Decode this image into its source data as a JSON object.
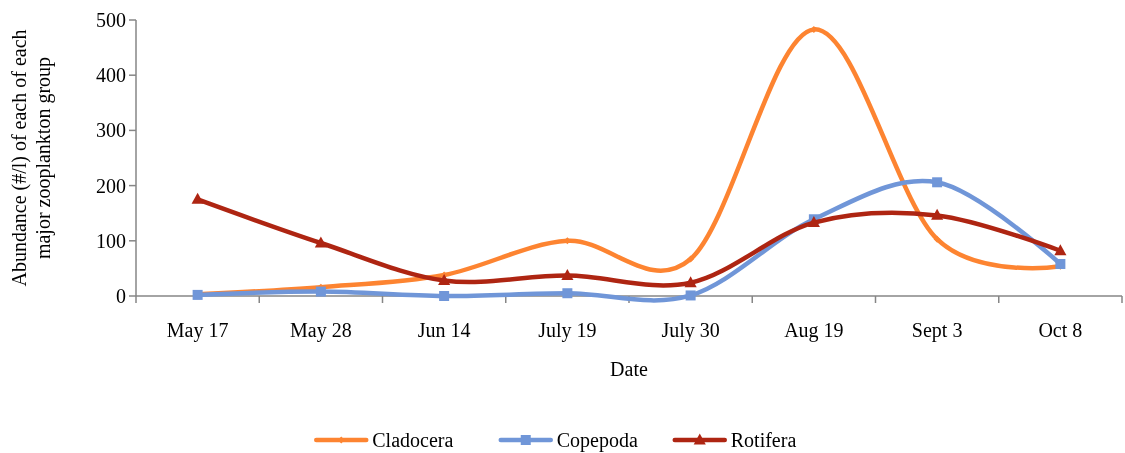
{
  "chart_data": {
    "type": "line",
    "categories": [
      "May 17",
      "May 28",
      "Jun 14",
      "July 19",
      "July 30",
      "Aug 19",
      "Sept 3",
      "Oct 8"
    ],
    "series": [
      {
        "name": "Cladocera",
        "color": "#fd8431",
        "marker": "diamond",
        "values": [
          3,
          16,
          38,
          100,
          67,
          483,
          103,
          54
        ]
      },
      {
        "name": "Copepoda",
        "color": "#7096d8",
        "marker": "square",
        "values": [
          2,
          8,
          0,
          5,
          1,
          139,
          206,
          58
        ]
      },
      {
        "name": "Rotifera",
        "color": "#ae2512",
        "marker": "triangle",
        "values": [
          175,
          96,
          28,
          37,
          24,
          133,
          146,
          82
        ]
      }
    ],
    "xlabel": "Date",
    "ylabel": "Abundance (#/l) of each of each major zooplankton group",
    "ylim": [
      0,
      500
    ],
    "yticks": [
      0,
      100,
      200,
      300,
      400,
      500
    ],
    "grid": false,
    "legend": "bottom"
  }
}
